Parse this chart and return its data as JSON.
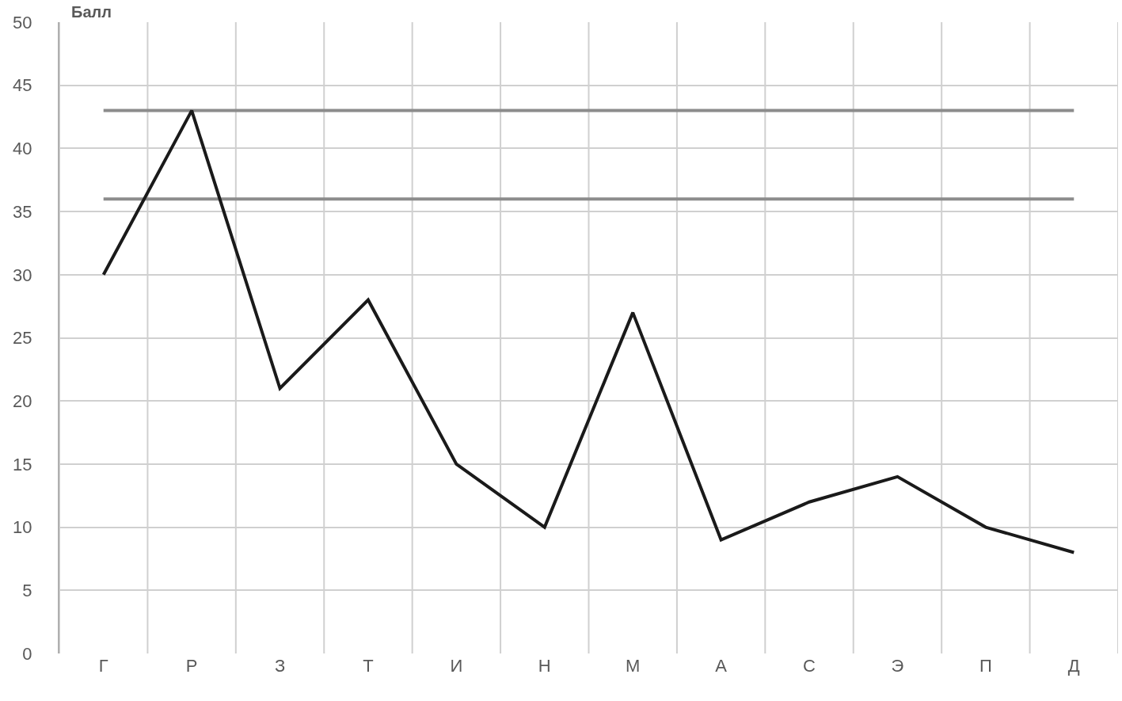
{
  "chart_data": {
    "type": "line",
    "ylabel": "Балл",
    "categories": [
      "Г",
      "Р",
      "З",
      "Т",
      "И",
      "Н",
      "М",
      "А",
      "С",
      "Э",
      "П",
      "Д"
    ],
    "series": [
      {
        "color": "#1a1a1a",
        "values": [
          30,
          43,
          21,
          28,
          15,
          10,
          27,
          9,
          12,
          14,
          10,
          8
        ]
      }
    ],
    "ylim": [
      0,
      50
    ],
    "yticks": [
      0,
      5,
      10,
      15,
      20,
      25,
      30,
      35,
      40,
      45,
      50
    ],
    "ref_lines": [
      {
        "axis": "y",
        "value": 43,
        "color": "#8c8c8c"
      },
      {
        "axis": "y",
        "value": 36,
        "color": "#8c8c8c"
      }
    ],
    "grid": true,
    "legend": false,
    "marker": "none",
    "line_style": "solid"
  }
}
